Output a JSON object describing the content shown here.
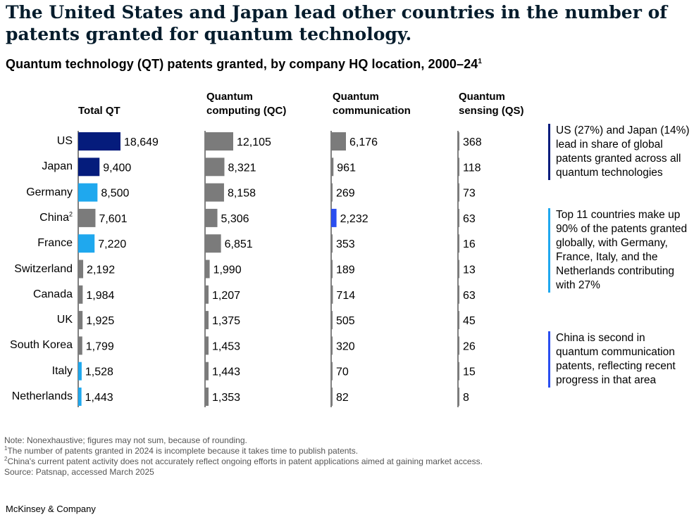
{
  "title": "The United States and Japan lead other countries in the number of patents granted for quantum technology.",
  "subtitle": "Quantum technology (QT) patents granted, by company HQ location, 2000–24",
  "subtitle_sup": "1",
  "columns": [
    {
      "line1": "",
      "line2": "Total QT"
    },
    {
      "line1": "Quantum",
      "line2": "computing (QC)"
    },
    {
      "line1": "Quantum",
      "line2": "communication"
    },
    {
      "line1": "Quantum",
      "line2": "sensing (QS)"
    }
  ],
  "countries": [
    {
      "name": "US",
      "sup": ""
    },
    {
      "name": "Japan",
      "sup": ""
    },
    {
      "name": "Germany",
      "sup": ""
    },
    {
      "name": "China",
      "sup": "2"
    },
    {
      "name": "France",
      "sup": ""
    },
    {
      "name": "Switzerland",
      "sup": ""
    },
    {
      "name": "Canada",
      "sup": ""
    },
    {
      "name": "UK",
      "sup": ""
    },
    {
      "name": "South Korea",
      "sup": ""
    },
    {
      "name": "Italy",
      "sup": ""
    },
    {
      "name": "Netherlands",
      "sup": ""
    }
  ],
  "colors": {
    "navy": "#051c7c",
    "lightblue": "#1fa8ee",
    "blue": "#2a4ef0",
    "gray": "#7b7b7b",
    "note1": "#051c7c",
    "note2": "#1fa8ee",
    "note3": "#2a4ef0"
  },
  "chart_data": {
    "type": "bar",
    "categories": [
      "US",
      "Japan",
      "Germany",
      "China",
      "France",
      "Switzerland",
      "Canada",
      "UK",
      "South Korea",
      "Italy",
      "Netherlands"
    ],
    "series": [
      {
        "name": "Total QT",
        "values": [
          18649,
          9400,
          8500,
          7601,
          7220,
          2192,
          1984,
          1925,
          1799,
          1528,
          1443
        ],
        "labels": [
          "18,649",
          "9,400",
          "8,500",
          "7,601",
          "7,220",
          "2,192",
          "1,984",
          "1,925",
          "1,799",
          "1,528",
          "1,443"
        ],
        "colors": [
          "navy",
          "navy",
          "lightblue",
          "gray",
          "lightblue",
          "gray",
          "gray",
          "gray",
          "gray",
          "lightblue",
          "lightblue"
        ]
      },
      {
        "name": "Quantum computing (QC)",
        "values": [
          12105,
          8321,
          8158,
          5306,
          6851,
          1990,
          1207,
          1375,
          1453,
          1443,
          1353
        ],
        "labels": [
          "12,105",
          "8,321",
          "8,158",
          "5,306",
          "6,851",
          "1,990",
          "1,207",
          "1,375",
          "1,453",
          "1,443",
          "1,353"
        ],
        "colors": [
          "gray",
          "gray",
          "gray",
          "gray",
          "gray",
          "gray",
          "gray",
          "gray",
          "gray",
          "gray",
          "gray"
        ]
      },
      {
        "name": "Quantum communication",
        "values": [
          6176,
          961,
          269,
          2232,
          353,
          189,
          714,
          505,
          320,
          70,
          82
        ],
        "labels": [
          "6,176",
          "961",
          "269",
          "2,232",
          "353",
          "189",
          "714",
          "505",
          "320",
          "70",
          "82"
        ],
        "colors": [
          "gray",
          "gray",
          "gray",
          "blue",
          "gray",
          "gray",
          "gray",
          "gray",
          "gray",
          "gray",
          "gray"
        ]
      },
      {
        "name": "Quantum sensing (QS)",
        "values": [
          368,
          118,
          73,
          63,
          16,
          13,
          63,
          45,
          26,
          15,
          8
        ],
        "labels": [
          "368",
          "118",
          "73",
          "63",
          "16",
          "13",
          "63",
          "45",
          "26",
          "15",
          "8"
        ],
        "colors": [
          "gray",
          "gray",
          "gray",
          "gray",
          "gray",
          "gray",
          "gray",
          "gray",
          "gray",
          "gray",
          "gray"
        ]
      }
    ]
  },
  "notes": [
    {
      "text": "US (27%) and Japan (14%) lead in share of global patents granted across all quantum technologies",
      "color": "note1"
    },
    {
      "text": "Top 11 countries make up 90% of the patents granted globally, with Germany, France, Italy, and the Netherlands contributing with 27%",
      "color": "note2"
    },
    {
      "text": "China is second in quantum communication patents, reflecting recent progress in that area",
      "color": "note3"
    }
  ],
  "footnotes": {
    "note": "Note: Nonexhaustive; figures may not sum, because of rounding.",
    "fn1_sup": "1",
    "fn1": "The number of patents granted in 2024 is incomplete because it takes time to publish patents.",
    "fn2_sup": "2",
    "fn2": "China's current patent activity does not accurately reflect ongoing efforts in patent applications aimed at gaining market access.",
    "source": "Source: Patsnap, accessed March 2025"
  },
  "brand": "McKinsey & Company"
}
